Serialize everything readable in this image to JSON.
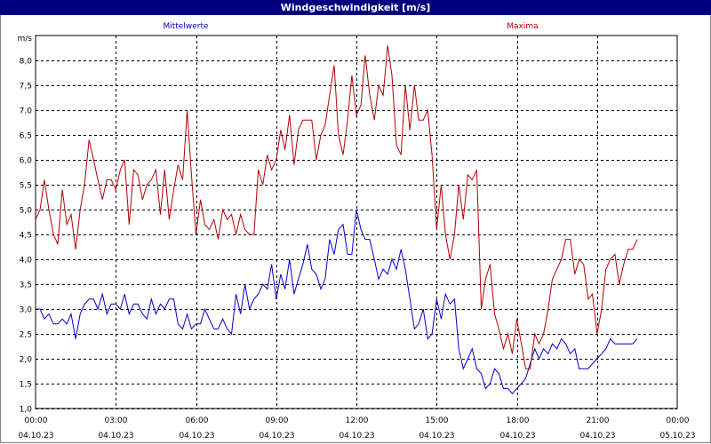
{
  "window": {
    "title": "Windgeschwindigkeit [m/s]"
  },
  "colors": {
    "title_bar": "#00007f",
    "mittelwerte": "#0000cc",
    "maxima": "#b20000",
    "grid": "#000000"
  },
  "chart_data": {
    "type": "line",
    "title": "Windgeschwindigkeit [m/s]",
    "ylabel": "m/s",
    "ylim": [
      1.0,
      8.5
    ],
    "yticks": [
      "1,0",
      "1,5",
      "2,0",
      "2,5",
      "3,0",
      "3,5",
      "4,0",
      "4,5",
      "5,0",
      "5,5",
      "6,0",
      "6,5",
      "7,0",
      "7,5",
      "8,0"
    ],
    "xlim_hours": [
      0,
      24
    ],
    "x_unit": "hours since 04.10.23 00:00",
    "xticks": [
      {
        "time": "00:00",
        "date": "04.10.23"
      },
      {
        "time": "03:00",
        "date": "04.10.23"
      },
      {
        "time": "06:00",
        "date": "04.10.23"
      },
      {
        "time": "09:00",
        "date": "04.10.23"
      },
      {
        "time": "12:00",
        "date": "04.10.23"
      },
      {
        "time": "15:00",
        "date": "04.10.23"
      },
      {
        "time": "18:00",
        "date": "04.10.23"
      },
      {
        "time": "21:00",
        "date": "04.10.23"
      },
      {
        "time": "00:00",
        "date": "05.10.23"
      }
    ],
    "grid": true,
    "series": [
      {
        "name": "Mittelwerte",
        "color": "#0000cc",
        "points": [
          [
            0,
            3.0
          ],
          [
            0.17,
            3.0
          ],
          [
            0.33,
            2.8
          ],
          [
            0.5,
            2.9
          ],
          [
            0.67,
            2.7
          ],
          [
            0.83,
            2.7
          ],
          [
            1.0,
            2.8
          ],
          [
            1.17,
            2.7
          ],
          [
            1.33,
            2.9
          ],
          [
            1.5,
            2.4
          ],
          [
            1.67,
            2.9
          ],
          [
            1.83,
            3.1
          ],
          [
            2.0,
            3.2
          ],
          [
            2.17,
            3.2
          ],
          [
            2.33,
            3.0
          ],
          [
            2.5,
            3.3
          ],
          [
            2.67,
            2.9
          ],
          [
            2.83,
            3.1
          ],
          [
            3.0,
            3.1
          ],
          [
            3.17,
            3.0
          ],
          [
            3.33,
            3.3
          ],
          [
            3.5,
            2.9
          ],
          [
            3.67,
            3.1
          ],
          [
            3.83,
            3.1
          ],
          [
            4.0,
            2.9
          ],
          [
            4.17,
            2.8
          ],
          [
            4.33,
            3.2
          ],
          [
            4.5,
            2.9
          ],
          [
            4.67,
            3.1
          ],
          [
            4.83,
            3.0
          ],
          [
            5.0,
            3.2
          ],
          [
            5.17,
            3.2
          ],
          [
            5.33,
            2.7
          ],
          [
            5.5,
            2.6
          ],
          [
            5.67,
            2.9
          ],
          [
            5.83,
            2.6
          ],
          [
            6.0,
            2.7
          ],
          [
            6.17,
            2.7
          ],
          [
            6.33,
            3.0
          ],
          [
            6.5,
            2.8
          ],
          [
            6.67,
            2.6
          ],
          [
            6.83,
            2.6
          ],
          [
            7.0,
            2.8
          ],
          [
            7.17,
            2.6
          ],
          [
            7.33,
            2.5
          ],
          [
            7.5,
            3.3
          ],
          [
            7.67,
            2.9
          ],
          [
            7.83,
            3.5
          ],
          [
            8.0,
            3.0
          ],
          [
            8.17,
            3.2
          ],
          [
            8.33,
            3.3
          ],
          [
            8.5,
            3.5
          ],
          [
            8.67,
            3.4
          ],
          [
            8.83,
            3.9
          ],
          [
            9.0,
            3.2
          ],
          [
            9.17,
            3.7
          ],
          [
            9.33,
            3.4
          ],
          [
            9.5,
            4.0
          ],
          [
            9.67,
            3.3
          ],
          [
            9.83,
            3.6
          ],
          [
            10.0,
            3.9
          ],
          [
            10.17,
            4.3
          ],
          [
            10.33,
            3.8
          ],
          [
            10.5,
            3.7
          ],
          [
            10.67,
            3.4
          ],
          [
            10.83,
            3.6
          ],
          [
            11.0,
            4.4
          ],
          [
            11.17,
            4.1
          ],
          [
            11.33,
            4.6
          ],
          [
            11.5,
            4.7
          ],
          [
            11.67,
            4.1
          ],
          [
            11.83,
            4.1
          ],
          [
            12.0,
            5.0
          ],
          [
            12.17,
            4.6
          ],
          [
            12.33,
            4.4
          ],
          [
            12.5,
            4.4
          ],
          [
            12.67,
            4.0
          ],
          [
            12.83,
            3.6
          ],
          [
            13.0,
            3.8
          ],
          [
            13.17,
            3.7
          ],
          [
            13.33,
            4.0
          ],
          [
            13.5,
            3.8
          ],
          [
            13.67,
            4.2
          ],
          [
            13.83,
            3.8
          ],
          [
            14.0,
            3.2
          ],
          [
            14.17,
            2.6
          ],
          [
            14.33,
            2.7
          ],
          [
            14.5,
            3.0
          ],
          [
            14.67,
            2.4
          ],
          [
            14.83,
            2.5
          ],
          [
            15.0,
            3.2
          ],
          [
            15.17,
            2.8
          ],
          [
            15.33,
            3.3
          ],
          [
            15.5,
            3.1
          ],
          [
            15.67,
            3.2
          ],
          [
            15.83,
            2.2
          ],
          [
            16.0,
            1.8
          ],
          [
            16.17,
            2.0
          ],
          [
            16.33,
            2.2
          ],
          [
            16.5,
            1.8
          ],
          [
            16.67,
            1.7
          ],
          [
            16.83,
            1.4
          ],
          [
            17.0,
            1.5
          ],
          [
            17.17,
            1.8
          ],
          [
            17.33,
            1.7
          ],
          [
            17.5,
            1.4
          ],
          [
            17.67,
            1.4
          ],
          [
            17.83,
            1.3
          ],
          [
            18.0,
            1.4
          ],
          [
            18.17,
            1.5
          ],
          [
            18.33,
            1.6
          ],
          [
            18.5,
            1.9
          ],
          [
            18.67,
            2.2
          ],
          [
            18.83,
            2.0
          ],
          [
            19.0,
            2.2
          ],
          [
            19.17,
            2.1
          ],
          [
            19.33,
            2.3
          ],
          [
            19.5,
            2.2
          ],
          [
            19.67,
            2.4
          ],
          [
            19.83,
            2.3
          ],
          [
            20.0,
            2.1
          ],
          [
            20.17,
            2.2
          ],
          [
            20.33,
            1.8
          ],
          [
            20.5,
            1.8
          ],
          [
            20.67,
            1.8
          ],
          [
            20.83,
            1.9
          ],
          [
            21.0,
            2.0
          ],
          [
            21.17,
            2.1
          ],
          [
            21.33,
            2.2
          ],
          [
            21.5,
            2.4
          ],
          [
            21.67,
            2.3
          ],
          [
            21.83,
            2.3
          ],
          [
            22.0,
            2.3
          ],
          [
            22.17,
            2.3
          ],
          [
            22.33,
            2.3
          ],
          [
            22.5,
            2.4
          ]
        ]
      },
      {
        "name": "Maxima",
        "color": "#b20000",
        "points": [
          [
            0,
            4.8
          ],
          [
            0.17,
            5.0
          ],
          [
            0.33,
            5.6
          ],
          [
            0.5,
            5.0
          ],
          [
            0.67,
            4.5
          ],
          [
            0.83,
            4.3
          ],
          [
            1.0,
            5.4
          ],
          [
            1.17,
            4.7
          ],
          [
            1.33,
            4.9
          ],
          [
            1.5,
            4.2
          ],
          [
            1.67,
            5.0
          ],
          [
            1.83,
            5.5
          ],
          [
            2.0,
            6.4
          ],
          [
            2.17,
            6.0
          ],
          [
            2.33,
            5.6
          ],
          [
            2.5,
            5.2
          ],
          [
            2.67,
            5.6
          ],
          [
            2.83,
            5.6
          ],
          [
            3.0,
            5.4
          ],
          [
            3.17,
            5.8
          ],
          [
            3.33,
            6.0
          ],
          [
            3.5,
            4.7
          ],
          [
            3.67,
            5.8
          ],
          [
            3.83,
            5.7
          ],
          [
            4.0,
            5.2
          ],
          [
            4.17,
            5.5
          ],
          [
            4.33,
            5.6
          ],
          [
            4.5,
            5.8
          ],
          [
            4.67,
            4.9
          ],
          [
            4.83,
            5.8
          ],
          [
            5.0,
            4.8
          ],
          [
            5.17,
            5.4
          ],
          [
            5.33,
            5.9
          ],
          [
            5.5,
            5.6
          ],
          [
            5.67,
            7.0
          ],
          [
            5.83,
            5.7
          ],
          [
            6.0,
            4.5
          ],
          [
            6.17,
            5.2
          ],
          [
            6.33,
            4.7
          ],
          [
            6.5,
            4.6
          ],
          [
            6.67,
            4.8
          ],
          [
            6.83,
            4.4
          ],
          [
            7.0,
            5.0
          ],
          [
            7.17,
            4.8
          ],
          [
            7.33,
            4.9
          ],
          [
            7.5,
            4.5
          ],
          [
            7.67,
            4.9
          ],
          [
            7.83,
            4.6
          ],
          [
            8.0,
            4.5
          ],
          [
            8.17,
            4.5
          ],
          [
            8.33,
            5.8
          ],
          [
            8.5,
            5.5
          ],
          [
            8.67,
            6.1
          ],
          [
            8.83,
            5.8
          ],
          [
            9.0,
            6.0
          ],
          [
            9.17,
            6.6
          ],
          [
            9.33,
            6.2
          ],
          [
            9.5,
            6.9
          ],
          [
            9.67,
            5.9
          ],
          [
            9.83,
            6.6
          ],
          [
            10.0,
            6.8
          ],
          [
            10.17,
            6.8
          ],
          [
            10.33,
            6.8
          ],
          [
            10.5,
            6.0
          ],
          [
            10.67,
            6.5
          ],
          [
            10.83,
            6.7
          ],
          [
            11.0,
            7.3
          ],
          [
            11.17,
            7.9
          ],
          [
            11.33,
            6.5
          ],
          [
            11.5,
            6.1
          ],
          [
            11.67,
            6.8
          ],
          [
            11.83,
            7.7
          ],
          [
            12.0,
            6.9
          ],
          [
            12.17,
            7.1
          ],
          [
            12.33,
            8.1
          ],
          [
            12.5,
            7.3
          ],
          [
            12.67,
            6.8
          ],
          [
            12.83,
            7.5
          ],
          [
            13.0,
            7.3
          ],
          [
            13.17,
            8.3
          ],
          [
            13.33,
            7.7
          ],
          [
            13.5,
            6.3
          ],
          [
            13.67,
            6.1
          ],
          [
            13.83,
            7.5
          ],
          [
            14.0,
            6.6
          ],
          [
            14.17,
            7.5
          ],
          [
            14.33,
            6.8
          ],
          [
            14.5,
            6.8
          ],
          [
            14.67,
            7.0
          ],
          [
            14.83,
            6.1
          ],
          [
            15.0,
            4.6
          ],
          [
            15.17,
            5.5
          ],
          [
            15.33,
            4.5
          ],
          [
            15.5,
            4.0
          ],
          [
            15.67,
            4.5
          ],
          [
            15.83,
            5.5
          ],
          [
            16.0,
            4.8
          ],
          [
            16.17,
            5.7
          ],
          [
            16.33,
            5.6
          ],
          [
            16.5,
            5.8
          ],
          [
            16.67,
            3.0
          ],
          [
            16.83,
            3.6
          ],
          [
            17.0,
            3.9
          ],
          [
            17.17,
            2.9
          ],
          [
            17.33,
            2.6
          ],
          [
            17.5,
            2.2
          ],
          [
            17.67,
            2.5
          ],
          [
            17.83,
            2.1
          ],
          [
            18.0,
            2.8
          ],
          [
            18.17,
            2.3
          ],
          [
            18.33,
            1.8
          ],
          [
            18.5,
            1.8
          ],
          [
            18.67,
            2.5
          ],
          [
            18.83,
            2.3
          ],
          [
            19.0,
            2.5
          ],
          [
            19.17,
            3.0
          ],
          [
            19.33,
            3.6
          ],
          [
            19.5,
            3.8
          ],
          [
            19.67,
            4.0
          ],
          [
            19.83,
            4.4
          ],
          [
            20.0,
            4.4
          ],
          [
            20.17,
            3.7
          ],
          [
            20.33,
            4.0
          ],
          [
            20.5,
            3.9
          ],
          [
            20.67,
            3.2
          ],
          [
            20.83,
            3.3
          ],
          [
            21.0,
            2.5
          ],
          [
            21.17,
            3.0
          ],
          [
            21.33,
            3.8
          ],
          [
            21.5,
            4.0
          ],
          [
            21.67,
            4.1
          ],
          [
            21.83,
            3.5
          ],
          [
            22.0,
            3.9
          ],
          [
            22.17,
            4.2
          ],
          [
            22.33,
            4.2
          ],
          [
            22.5,
            4.4
          ]
        ]
      }
    ]
  }
}
